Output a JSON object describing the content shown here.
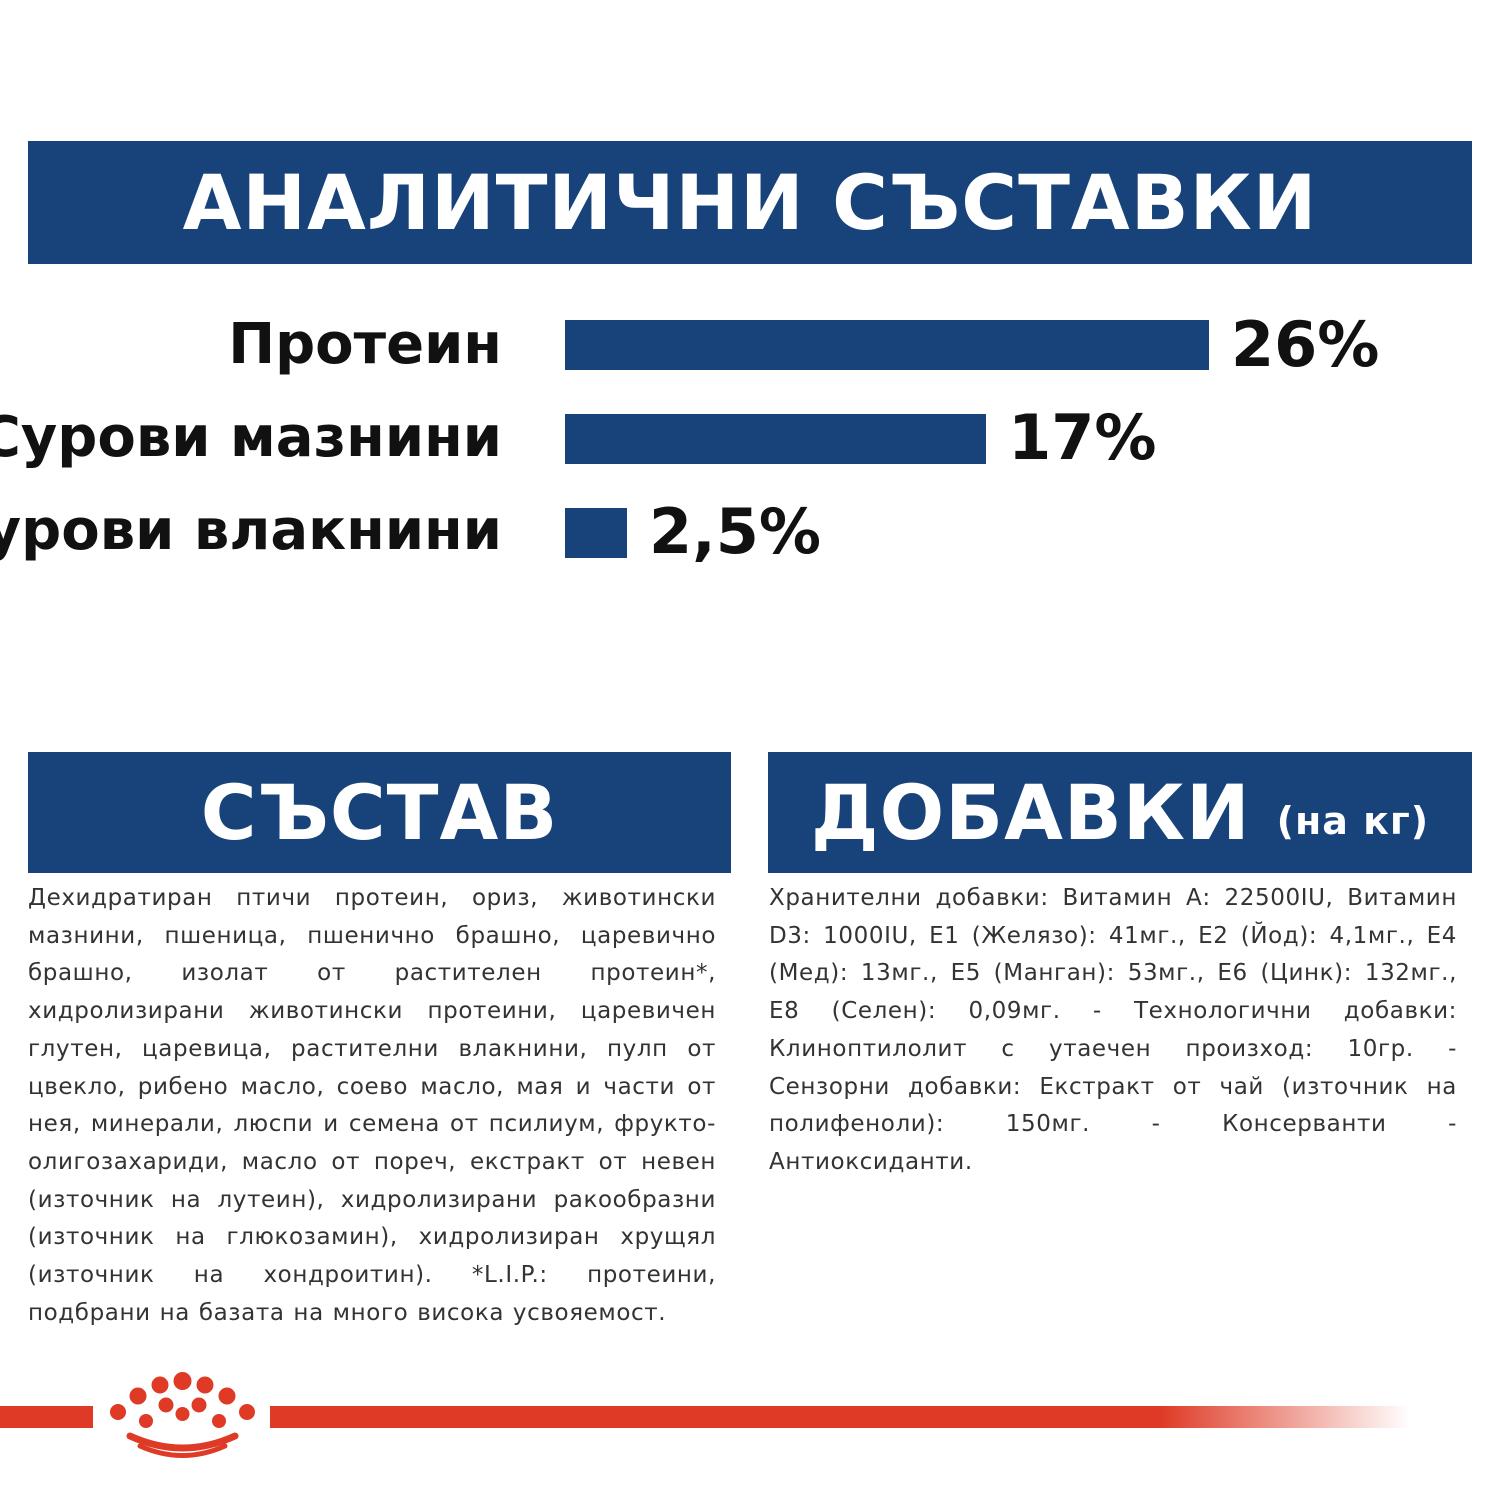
{
  "analytical": {
    "title": "АНАЛИТИЧНИ СЪСТАВКИ",
    "items": [
      {
        "label": "Протеин",
        "value_text": "26%",
        "value": 26
      },
      {
        "label": "Сурови мазнини",
        "value_text": "17%",
        "value": 17
      },
      {
        "label": "Сурови влакнини",
        "value_text": "2,5%",
        "value": 2.5
      }
    ],
    "bar_color": "#18427a"
  },
  "composition": {
    "title": "СЪСТАВ",
    "text": "Дехидратиран птичи протеин, ориз, животински мазнини, пшеница, пшенично брашно, царевично брашно, изолат от растителен протеин*, хидролизирани животински протеини, царевичен глутен, царевица, растителни влакнини, пулп от цвекло, рибено масло, соево масло, мая и части от нея, минерали, люспи и семена от псилиум, фрукто-олигозахариди, масло от пореч, екстракт от невен (източник на лутеин), хидролизирани ракообразни (източник на глюкозамин), хидролизиран хрущял (източник на хондроитин). *L.I.P.: протеини, подбрани на базата на много висока усвояемост."
  },
  "additives": {
    "title": "ДОБАВКИ",
    "unit": "(на кг)",
    "text": "Хранителни добавки: Витамин А: 22500IU, Витамин D3: 1000IU, E1 (Желязо): 41мг., E2 (Йод): 4,1мг., E4 (Мед): 13мг., E5 (Манган): 53мг., E6 (Цинк): 132мг., E8 (Селен): 0,09мг. - Технологични добавки: Клиноптилолит с утаечен произход: 10гр. - Сензорни добавки: Екстракт от чай (източник на полифеноли): 150мг. - Консерванти - Антиоксиданти."
  },
  "footer": {
    "logo_icon": "royal-canin-crown-icon",
    "accent_color": "#de3a25"
  }
}
